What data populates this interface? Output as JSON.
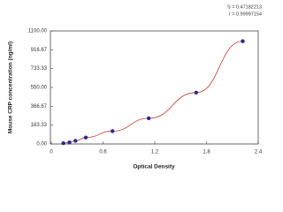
{
  "chart_data": {
    "type": "scatter",
    "x_label": "Optical Density",
    "y_label": "Mouse CRP concentration (ng/ml)",
    "annotations": [
      "S = 0.47182213",
      "r = 0.99997154"
    ],
    "series": [
      {
        "color": "#2b2a8c",
        "x": [
          0.14,
          0.21,
          0.28,
          0.4,
          0.71,
          1.13,
          1.68,
          2.22
        ],
        "values": [
          8,
          16,
          31,
          63,
          125,
          250,
          500,
          1000
        ]
      }
    ],
    "curve_color": "#c0392b",
    "xlim": [
      0,
      2.4
    ],
    "xticks": [
      0,
      0.6,
      1.2,
      1.8,
      2.4
    ],
    "ylim": [
      0,
      1100
    ],
    "yticks": [
      {
        "value": 0,
        "label": "0.00"
      },
      183.33,
      366.67,
      {
        "value": 550,
        "label": "550.00"
      },
      733.33,
      916.67,
      {
        "value": 1100,
        "label": "1100.00"
      }
    ],
    "grid": false
  }
}
